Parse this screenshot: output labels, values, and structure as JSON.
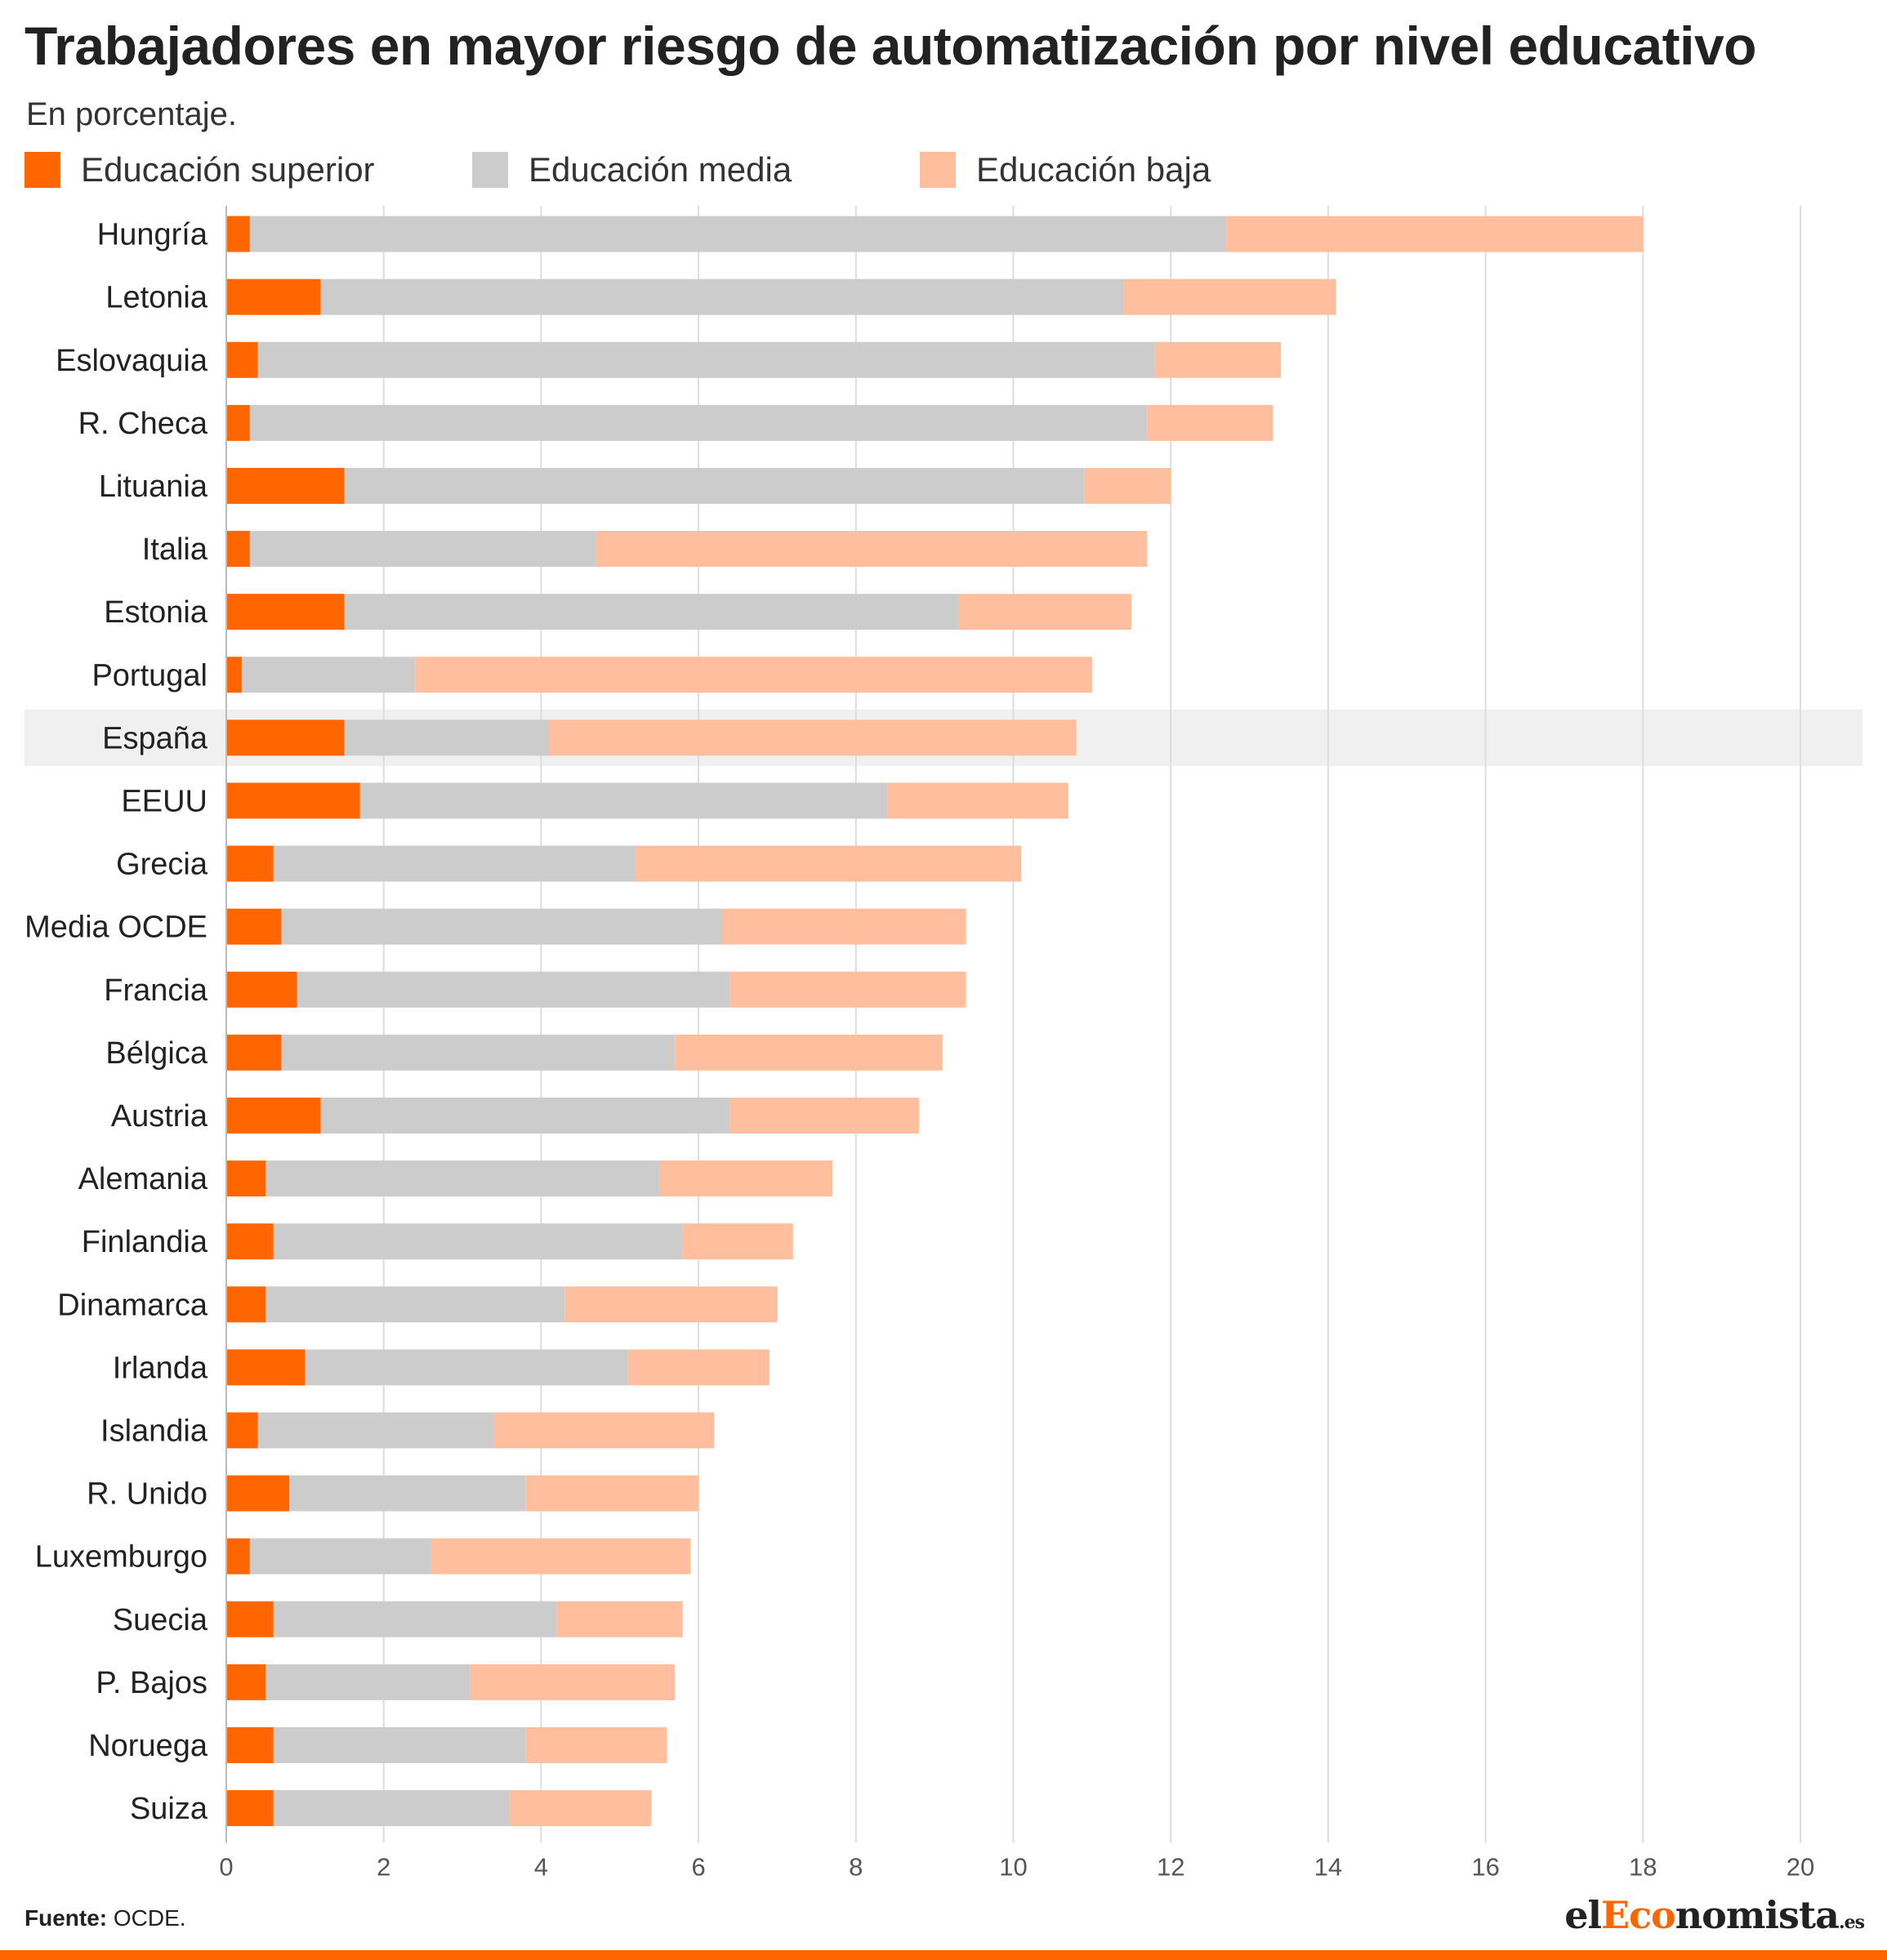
{
  "header": {
    "title": "Trabajadores en mayor riesgo de automatización por nivel educativo",
    "subtitle": "En porcentaje."
  },
  "footer": {
    "source_label": "Fuente:",
    "source_text": "OCDE.",
    "brand_prefix": "el",
    "brand_accent": "Eco",
    "brand_main": "nomista",
    "brand_suffix": ".es"
  },
  "colors": {
    "superior": "#ff6600",
    "media": "#cccccc",
    "baja": "#ffbf9f",
    "highlight_row": "#f0f0f0",
    "grid": "#dddddd",
    "brand_accent": "#ff6600"
  },
  "chart_data": {
    "type": "bar",
    "orientation": "horizontal",
    "stacked": true,
    "title": "Trabajadores en mayor riesgo de automatización por nivel educativo",
    "subtitle": "En porcentaje.",
    "xlim": [
      0,
      20
    ],
    "xticks": [
      0,
      2,
      4,
      6,
      8,
      10,
      12,
      14,
      16,
      18,
      20
    ],
    "grid": true,
    "legend_position": "top-left",
    "highlight_category": "España",
    "categories": [
      "Hungría",
      "Letonia",
      "Eslovaquia",
      "R. Checa",
      "Lituania",
      "Italia",
      "Estonia",
      "Portugal",
      "España",
      "EEUU",
      "Grecia",
      "Media OCDE",
      "Francia",
      "Bélgica",
      "Austria",
      "Alemania",
      "Finlandia",
      "Dinamarca",
      "Irlanda",
      "Islandia",
      "R. Unido",
      "Luxemburgo",
      "Suecia",
      "P. Bajos",
      "Noruega",
      "Suiza"
    ],
    "series": [
      {
        "name": "Educación superior",
        "color": "#ff6600",
        "values": [
          0.3,
          1.2,
          0.4,
          0.3,
          1.5,
          0.3,
          1.5,
          0.2,
          1.5,
          1.7,
          0.6,
          0.7,
          0.9,
          0.7,
          1.2,
          0.5,
          0.6,
          0.5,
          1.0,
          0.4,
          0.8,
          0.3,
          0.6,
          0.5,
          0.6,
          0.6
        ]
      },
      {
        "name": "Educación media",
        "color": "#cccccc",
        "values": [
          12.4,
          10.2,
          11.4,
          11.4,
          9.4,
          4.4,
          7.8,
          2.2,
          2.6,
          6.7,
          4.6,
          5.6,
          5.5,
          5.0,
          5.2,
          5.0,
          5.2,
          3.8,
          4.1,
          3.0,
          3.0,
          2.3,
          3.6,
          2.6,
          3.2,
          3.0
        ]
      },
      {
        "name": "Educación baja",
        "color": "#ffbf9f",
        "values": [
          5.3,
          2.7,
          1.6,
          1.6,
          1.1,
          7.0,
          2.2,
          8.6,
          6.7,
          2.3,
          4.9,
          3.1,
          3.0,
          3.4,
          2.4,
          2.2,
          1.4,
          2.7,
          1.8,
          2.8,
          2.2,
          3.3,
          1.6,
          2.6,
          1.8,
          1.8
        ]
      }
    ]
  }
}
